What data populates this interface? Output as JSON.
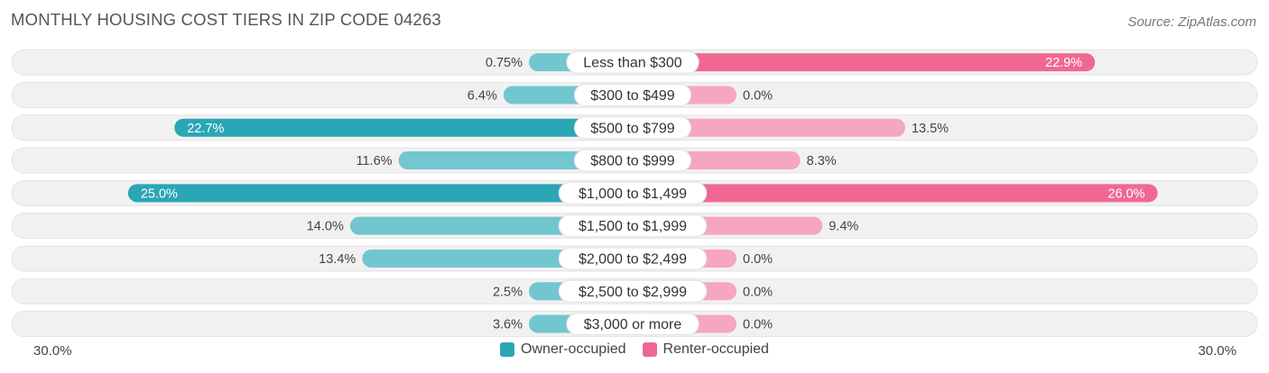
{
  "title": "MONTHLY HOUSING COST TIERS IN ZIP CODE 04263",
  "source": "Source: ZipAtlas.com",
  "axis": {
    "left_label": "30.0%",
    "right_label": "30.0%"
  },
  "legend": {
    "owner": "Owner-occupied",
    "renter": "Renter-occupied"
  },
  "colors": {
    "owner_dark": "#2aa6b6",
    "owner_light": "#72c6d0",
    "renter_dark": "#f06891",
    "renter_light": "#f6a6bf",
    "row_bg": "#f1f1f1"
  },
  "chart_data": {
    "type": "bar",
    "orientation": "diverging-horizontal",
    "title": "MONTHLY HOUSING COST TIERS IN ZIP CODE 04263",
    "xlim": [
      -30,
      30
    ],
    "categories": [
      "Less than $300",
      "$300 to $499",
      "$500 to $799",
      "$800 to $999",
      "$1,000 to $1,499",
      "$1,500 to $1,999",
      "$2,000 to $2,499",
      "$2,500 to $2,999",
      "$3,000 or more"
    ],
    "series": [
      {
        "name": "Owner-occupied",
        "values": [
          0.75,
          6.4,
          22.7,
          11.6,
          25.0,
          14.0,
          13.4,
          2.5,
          3.6
        ],
        "labels": [
          "0.75%",
          "6.4%",
          "22.7%",
          "11.6%",
          "25.0%",
          "14.0%",
          "13.4%",
          "2.5%",
          "3.6%"
        ]
      },
      {
        "name": "Renter-occupied",
        "values": [
          22.9,
          0.0,
          13.5,
          8.3,
          26.0,
          9.4,
          0.0,
          0.0,
          0.0
        ],
        "labels": [
          "22.9%",
          "0.0%",
          "13.5%",
          "8.3%",
          "26.0%",
          "9.4%",
          "0.0%",
          "0.0%",
          "0.0%"
        ]
      }
    ],
    "legend_position": "bottom-center"
  }
}
